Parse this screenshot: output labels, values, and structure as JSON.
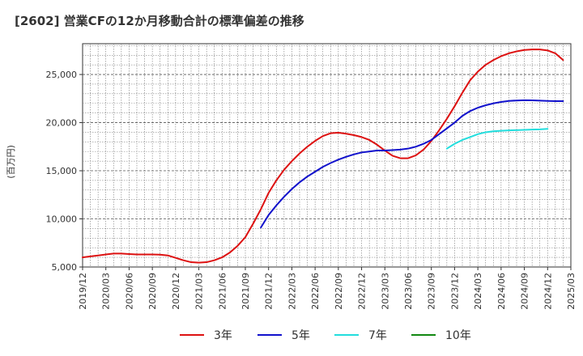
{
  "chart_data": {
    "type": "line",
    "title": "[2602]  営業CFの12か月移動合計の標準偏差の推移",
    "ylabel": "(百万円)",
    "xlabel": "",
    "x_tick_labels": [
      "2019/12",
      "2020/03",
      "2020/06",
      "2020/09",
      "2020/12",
      "2021/03",
      "2021/06",
      "2021/09",
      "2021/12",
      "2022/03",
      "2022/06",
      "2022/09",
      "2022/12",
      "2023/03",
      "2023/06",
      "2023/09",
      "2023/12",
      "2024/03",
      "2024/06",
      "2024/09",
      "2024/12",
      "2025/03"
    ],
    "y_tick_labels": [
      "5,000",
      "10,000",
      "15,000",
      "20,000",
      "25,000"
    ],
    "y_ticks": [
      5000,
      10000,
      15000,
      20000,
      25000
    ],
    "ylim": [
      5000,
      28200
    ],
    "grid": true,
    "legend_position": "bottom",
    "series": [
      {
        "name": "3年",
        "color": "#dd1111",
        "start": "2019/12",
        "values": [
          6000,
          6100,
          6200,
          6300,
          6400,
          6400,
          6350,
          6300,
          6300,
          6300,
          6280,
          6200,
          5950,
          5700,
          5500,
          5450,
          5500,
          5700,
          6000,
          6500,
          7200,
          8100,
          9500,
          11000,
          12700,
          14000,
          15100,
          16000,
          16800,
          17500,
          18100,
          18600,
          18900,
          18950,
          18850,
          18700,
          18500,
          18200,
          17700,
          17100,
          16550,
          16300,
          16300,
          16600,
          17200,
          18100,
          19200,
          20400,
          21700,
          23100,
          24400,
          25300,
          26000,
          26500,
          26900,
          27200,
          27400,
          27550,
          27600,
          27600,
          27500,
          27200,
          26500
        ]
      },
      {
        "name": "5年",
        "color": "#1111cc",
        "start": "2021/11",
        "values": [
          9100,
          10400,
          11400,
          12300,
          13100,
          13800,
          14400,
          14900,
          15400,
          15800,
          16150,
          16450,
          16700,
          16900,
          17000,
          17100,
          17100,
          17150,
          17200,
          17300,
          17500,
          17800,
          18200,
          18800,
          19400,
          20000,
          20700,
          21200,
          21550,
          21800,
          22000,
          22150,
          22250,
          22300,
          22330,
          22320,
          22280,
          22250,
          22230,
          22230
        ]
      },
      {
        "name": "7年",
        "color": "#22dddd",
        "start": "2023/11",
        "values": [
          17300,
          17800,
          18200,
          18500,
          18800,
          19000,
          19100,
          19150,
          19200,
          19220,
          19250,
          19280,
          19300,
          19350
        ]
      },
      {
        "name": "10年",
        "color": "#118811",
        "start": "2024/12",
        "values": []
      }
    ]
  }
}
